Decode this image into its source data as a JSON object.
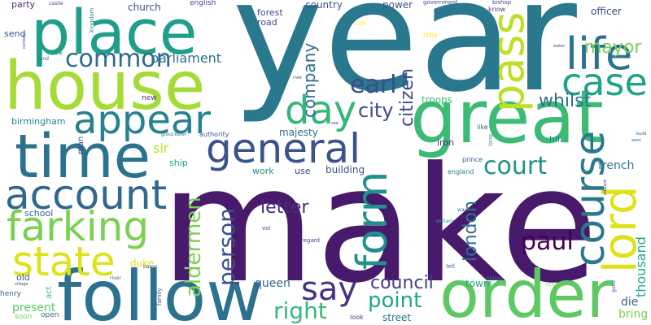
{
  "words": [
    {
      "text": "make",
      "color": "#481a6c"
    },
    {
      "text": "year",
      "color": "#2a788e"
    },
    {
      "text": "house",
      "color": "#a5db36"
    },
    {
      "text": "place",
      "color": "#1f9e89"
    },
    {
      "text": "great",
      "color": "#3cbb75"
    },
    {
      "text": "time",
      "color": "#2c728e"
    },
    {
      "text": "follow",
      "color": "#2c728e"
    },
    {
      "text": "order",
      "color": "#5ec962"
    },
    {
      "text": "general",
      "color": "#3b528b"
    },
    {
      "text": "account",
      "color": "#31688e"
    },
    {
      "text": "appear",
      "color": "#26828e"
    },
    {
      "text": "farking",
      "color": "#7ad151"
    },
    {
      "text": "state",
      "color": "#dde318"
    },
    {
      "text": "day",
      "color": "#35b779"
    },
    {
      "text": "life",
      "color": "#2c728e"
    },
    {
      "text": "case",
      "color": "#20a386"
    },
    {
      "text": "pass",
      "color": "#bddf26"
    },
    {
      "text": "course",
      "color": "#2a788e"
    },
    {
      "text": "lord",
      "color": "#dde318"
    },
    {
      "text": "form",
      "color": "#21918c"
    },
    {
      "text": "say",
      "color": "#46327e"
    },
    {
      "text": "common",
      "color": "#31688e"
    },
    {
      "text": "court",
      "color": "#21918c"
    },
    {
      "text": "earl",
      "color": "#3e4a89"
    },
    {
      "text": "city",
      "color": "#3e4989"
    },
    {
      "text": "mayor",
      "color": "#7ad151"
    },
    {
      "text": "whilst",
      "color": "#2c728e"
    },
    {
      "text": "paul",
      "color": "#440154"
    },
    {
      "text": "point",
      "color": "#22a884"
    },
    {
      "text": "right",
      "color": "#35b779"
    },
    {
      "text": "person",
      "color": "#3b528b"
    },
    {
      "text": "aldermen",
      "color": "#7ad151"
    },
    {
      "text": "london",
      "color": "#2c728e"
    },
    {
      "text": "council",
      "color": "#433e85"
    },
    {
      "text": "letter",
      "color": "#472c7a"
    },
    {
      "text": "company",
      "color": "#2e6e8e"
    },
    {
      "text": "citizen",
      "color": "#3e4989"
    },
    {
      "text": "parliament",
      "color": "#2c728e"
    },
    {
      "text": "sir",
      "color": "#bddf26"
    },
    {
      "text": "thousand",
      "color": "#22a884"
    },
    {
      "text": "french",
      "color": "#2d708e"
    },
    {
      "text": "bring",
      "color": "#7ad151"
    },
    {
      "text": "die",
      "color": "#31688e"
    },
    {
      "text": "queen",
      "color": "#31688e"
    },
    {
      "text": "present",
      "color": "#5ec962"
    },
    {
      "text": "street",
      "color": "#2c728e"
    },
    {
      "text": "town",
      "color": "#22a884"
    },
    {
      "text": "duke",
      "color": "#dde318"
    },
    {
      "text": "troops",
      "color": "#3cbb75"
    },
    {
      "text": "majesty",
      "color": "#2d708e"
    },
    {
      "text": "building",
      "color": "#3b528b"
    },
    {
      "text": "officer",
      "color": "#3e4a89"
    },
    {
      "text": "church",
      "color": "#3e4989"
    },
    {
      "text": "country",
      "color": "#3b528b"
    },
    {
      "text": "power",
      "color": "#3b528b"
    },
    {
      "text": "party",
      "color": "#482677"
    },
    {
      "text": "forest",
      "color": "#3e4a89"
    },
    {
      "text": "road",
      "color": "#3e4a89"
    },
    {
      "text": "send",
      "color": "#39568c"
    },
    {
      "text": "birmingham",
      "color": "#26828e"
    },
    {
      "text": "hill",
      "color": "#21918c"
    },
    {
      "text": "iron",
      "color": "#472c7a"
    },
    {
      "text": "school",
      "color": "#31688e"
    },
    {
      "text": "old",
      "color": "#3b528b"
    },
    {
      "text": "ship",
      "color": "#20a386"
    },
    {
      "text": "work",
      "color": "#21918c"
    },
    {
      "text": "use",
      "color": "#3e4989"
    },
    {
      "text": "act",
      "color": "#3cbb75"
    },
    {
      "text": "english",
      "color": "#3e4989"
    },
    {
      "text": "man",
      "color": "#3e4989"
    },
    {
      "text": "henry",
      "color": "#31688e"
    },
    {
      "text": "soon",
      "color": "#7ad151"
    },
    {
      "text": "open",
      "color": "#31688e"
    },
    {
      "text": "new",
      "color": "#46327e"
    },
    {
      "text": "kingdom",
      "color": "#26828e"
    },
    {
      "text": "castle",
      "color": "#3b528b"
    },
    {
      "text": "government",
      "color": "#3e4989"
    },
    {
      "text": "bishop",
      "color": "#3e4989"
    },
    {
      "text": "know",
      "color": "#433e85"
    },
    {
      "text": "son",
      "color": "#fde725"
    },
    {
      "text": "little",
      "color": "#fde725"
    },
    {
      "text": "authority",
      "color": "#39568c"
    },
    {
      "text": "england",
      "color": "#26828e"
    },
    {
      "text": "prince",
      "color": "#39568c"
    },
    {
      "text": "like",
      "color": "#31688e"
    },
    {
      "text": "long",
      "color": "#22a884"
    },
    {
      "text": "gloucester",
      "color": "#2c728e"
    },
    {
      "text": "come",
      "color": "#22a884"
    },
    {
      "text": "land",
      "color": "#2c728e"
    },
    {
      "text": "vol",
      "color": "#3e4a89"
    },
    {
      "text": "regard",
      "color": "#433e85"
    },
    {
      "text": "william",
      "color": "#21918c"
    },
    {
      "text": "war",
      "color": "#2c728e"
    },
    {
      "text": "baron",
      "color": "#39568c"
    },
    {
      "text": "family",
      "color": "#3e4a89"
    },
    {
      "text": "river",
      "color": "#3b528b"
    },
    {
      "text": "tell",
      "color": "#31688e"
    },
    {
      "text": "oblige",
      "color": "#2c728e"
    },
    {
      "text": "richard",
      "color": "#7ad151"
    },
    {
      "text": "look",
      "color": "#3e4989"
    },
    {
      "text": "good",
      "color": "#3e4989"
    },
    {
      "text": "edward",
      "color": "#3e4a89"
    },
    {
      "text": "build",
      "color": "#3b528b"
    },
    {
      "text": "west",
      "color": "#2c728e"
    },
    {
      "text": "water",
      "color": "#3e4989"
    },
    {
      "text": "mile",
      "color": "#3e4989"
    },
    {
      "text": "sea",
      "color": "#3e4989"
    },
    {
      "text": "century",
      "color": "#3e4989"
    },
    {
      "text": "village",
      "color": "#3e4989"
    }
  ]
}
